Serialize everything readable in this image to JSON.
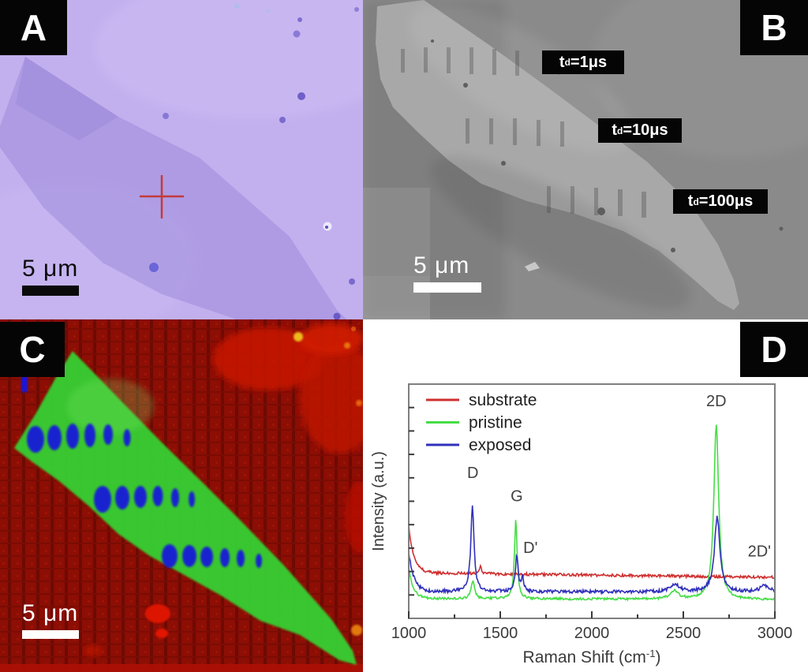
{
  "figure": {
    "panels": {
      "a": {
        "label": "A",
        "scalebar": "5 μm",
        "marker_color": "#c23b3b"
      },
      "b": {
        "label": "B",
        "scalebar": "5 μm",
        "dose_labels": [
          {
            "base": "t",
            "sub": "d",
            "rest": "=1μs"
          },
          {
            "base": "t",
            "sub": "d",
            "rest": "=10μs"
          },
          {
            "base": "t",
            "sub": "d",
            "rest": "=100μs"
          }
        ]
      },
      "c": {
        "label": "C",
        "scalebar": "5 μm",
        "map_colors": {
          "background": "#8c0e04",
          "flake": "#38cc33",
          "exposed_spots": "#1818dd"
        }
      },
      "d": {
        "label": "D"
      }
    }
  },
  "chart_data": {
    "type": "line",
    "title": "",
    "xlabel": "Raman Shift (cm⁻¹)",
    "xlabel_parts": {
      "main": "Raman Shift (cm",
      "sup": "-1",
      "close": ")"
    },
    "ylabel": "Intensity (a.u.)",
    "x_range": [
      1000,
      3000
    ],
    "x_major_ticks": [
      1000,
      1500,
      2000,
      2500,
      3000
    ],
    "x_minor_ticks": [
      1250,
      1750,
      2250,
      2750
    ],
    "y_minor_tick_count": 9,
    "grid": "off",
    "legend_position": "top-left",
    "annotations": [
      {
        "text": "D",
        "x": 1350,
        "yfrac": 0.6
      },
      {
        "text": "G",
        "x": 1590,
        "yfrac": 0.5
      },
      {
        "text": "D'",
        "x": 1665,
        "yfrac": 0.28
      },
      {
        "text": "2D",
        "x": 2680,
        "yfrac": 0.905
      },
      {
        "text": "2D'",
        "x": 2915,
        "yfrac": 0.265
      }
    ],
    "series": [
      {
        "name": "substrate",
        "color": "#cf2f2f",
        "baseline_start": 0.195,
        "baseline_end": 0.175,
        "edge_height": 0.2,
        "edge_tau": 28,
        "noise": 0.006,
        "peaks": [
          {
            "center": 1392,
            "height": 0.035,
            "hwhm": 5
          }
        ]
      },
      {
        "name": "pristine",
        "color": "#46dd46",
        "baseline_start": 0.085,
        "baseline_end": 0.08,
        "edge_height": 0.13,
        "edge_tau": 26,
        "noise": 0.005,
        "peaks": [
          {
            "center": 1350,
            "height": 0.075,
            "hwhm": 11
          },
          {
            "center": 1585,
            "height": 0.335,
            "hwhm": 9
          },
          {
            "center": 2450,
            "height": 0.035,
            "hwhm": 26
          },
          {
            "center": 2680,
            "height": 0.745,
            "hwhm": 16
          }
        ]
      },
      {
        "name": "exposed",
        "color": "#3030bb",
        "baseline_start": 0.115,
        "baseline_end": 0.112,
        "edge_height": 0.17,
        "edge_tau": 28,
        "noise": 0.007,
        "peaks": [
          {
            "center": 1348,
            "height": 0.36,
            "hwhm": 11
          },
          {
            "center": 1590,
            "height": 0.155,
            "hwhm": 9
          },
          {
            "center": 1622,
            "height": 0.06,
            "hwhm": 7
          },
          {
            "center": 2455,
            "height": 0.035,
            "hwhm": 28
          },
          {
            "center": 2685,
            "height": 0.32,
            "hwhm": 18
          },
          {
            "center": 2945,
            "height": 0.027,
            "hwhm": 30
          }
        ]
      }
    ]
  }
}
